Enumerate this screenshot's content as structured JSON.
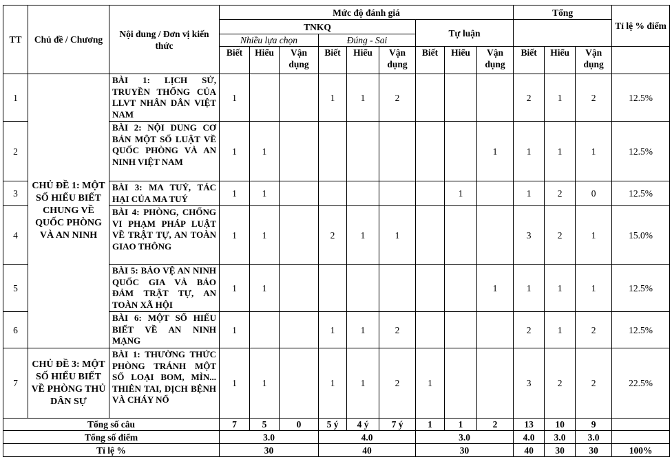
{
  "header": {
    "tt": "TT",
    "topic": "Chủ đề / Chương",
    "content": "Nội dung / Đơn vị kiến thức",
    "assessment": "Mức độ đánh giá",
    "tnkq": "TNKQ",
    "essay": "Tự luận",
    "mcq": "Nhiều lựa chọn",
    "truefalse": "Đúng - Sai",
    "total": "Tổng",
    "ratio": "Tỉ lệ % điểm",
    "levels": [
      "Biết",
      "Hiểu",
      "Vận dụng",
      "Biết",
      "Hiểu",
      "Vận dụng",
      "Biết",
      "Hiểu",
      "Vận dụng",
      "Biết",
      "Hiểu",
      "Vận dụng"
    ]
  },
  "groups": [
    {
      "topic": "CHỦ ĐỀ 1: MỘT SỐ HIỂU BIẾT CHUNG VỀ QUỐC PHÒNG VÀ AN NINH",
      "rows": [
        {
          "tt": "1",
          "content": "BÀI 1: LỊCH SỬ, TRUYỀN THỐNG CỦA LLVT NHÂN DÂN VIỆT NAM",
          "cells": [
            1,
            null,
            null,
            1,
            1,
            2,
            null,
            null,
            null,
            2,
            1,
            2
          ],
          "ratio": "12.5%"
        },
        {
          "tt": "2",
          "content": "BÀI 2: NỘI DUNG CƠ BẢN MỘT SỐ LUẬT VỀ QUỐC PHÒNG VÀ AN NINH VIỆT NAM",
          "cells": [
            1,
            1,
            null,
            null,
            null,
            null,
            null,
            null,
            1,
            1,
            1,
            1
          ],
          "ratio": "12.5%"
        },
        {
          "tt": "3",
          "content": "BÀI 3: MA TUÝ, TÁC HẠI CỦA MA TUÝ",
          "cells": [
            1,
            1,
            null,
            null,
            null,
            null,
            null,
            1,
            null,
            1,
            2,
            0
          ],
          "ratio": "12.5%"
        },
        {
          "tt": "4",
          "content": "BÀI 4: PHÒNG, CHỐNG VI PHẠM PHÁP LUẬT VỀ TRẬT TỰ, AN TOÀN GIAO THÔNG",
          "cells": [
            1,
            1,
            null,
            2,
            1,
            1,
            null,
            null,
            null,
            3,
            2,
            1
          ],
          "ratio": "15.0%"
        },
        {
          "tt": "5",
          "content": "BÀI 5: BẢO VỆ AN NINH QUỐC GIA VÀ BẢO ĐẢM TRẬT TỰ, AN TOÀN XÃ HỘI",
          "cells": [
            1,
            1,
            null,
            null,
            null,
            null,
            null,
            null,
            1,
            1,
            1,
            1
          ],
          "ratio": "12.5%"
        },
        {
          "tt": "6",
          "content": "BÀI 6: MỘT SỐ HIỂU BIẾT VỀ AN NINH MẠNG",
          "cells": [
            1,
            null,
            null,
            1,
            1,
            2,
            null,
            null,
            null,
            2,
            1,
            2
          ],
          "ratio": "12.5%"
        }
      ]
    },
    {
      "topic": "CHỦ ĐỀ 3: MỘT SỐ HIỂU BIẾT VỀ PHÒNG THỦ DÂN SỰ",
      "rows": [
        {
          "tt": "7",
          "content": "BÀI 1: THƯỜNG THỨC PHÒNG TRÁNH MỘT SỐ LOẠI BOM, MÌN... THIÊN TAI, DỊCH BỆNH VÀ CHÁY NỔ",
          "cells": [
            1,
            1,
            null,
            1,
            1,
            2,
            1,
            null,
            null,
            3,
            2,
            2
          ],
          "ratio": "22.5%"
        }
      ]
    }
  ],
  "footer": {
    "questions": {
      "label": "Tổng số câu",
      "cells": [
        7,
        5,
        0,
        "5 ý",
        "4 ý",
        "7 ý",
        1,
        1,
        2,
        13,
        10,
        9
      ]
    },
    "points": {
      "label": "Tổng số điểm",
      "mcq": "3.0",
      "truefalse": "4.0",
      "essay": "3.0",
      "totals": [
        "4.0",
        "3.0",
        "3.0"
      ]
    },
    "percent": {
      "label": "Tỉ lệ %",
      "mcq": 30,
      "truefalse": 40,
      "essay": 30,
      "totals": [
        40,
        30,
        30
      ],
      "ratio": "100%"
    }
  }
}
